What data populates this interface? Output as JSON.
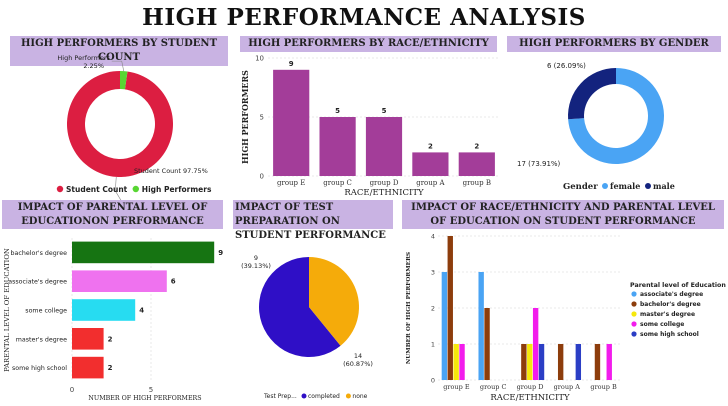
{
  "page": {
    "title": "HIGH PERFORMANCE ANALYSIS"
  },
  "panels": {
    "count": {
      "header": "HIGH PERFORMERS BY STUDENT COUNT"
    },
    "race": {
      "header": "HIGH PERFORMERS BY RACE/ETHNICITY"
    },
    "gender": {
      "header": "HIGH PERFORMERS BY GENDER"
    },
    "edu": {
      "header": "IMPACT OF PARENTAL LEVEL OF EDUCATIONON PERFORMANCE"
    },
    "prep": {
      "header": "IMPACT OF TEST PREPARATION ON STUDENT PERFORMANCE"
    },
    "combo": {
      "header": "IMPACT OF RACE/ETHNICITY AND PARENTAL LEVEL OF EDUCATION ON STUDENT PERFORMANCE"
    }
  },
  "chart_data": [
    {
      "id": "count",
      "type": "pie",
      "donut": true,
      "slices": [
        {
          "label": "Student Count",
          "value": 97.75,
          "label_text": "Student Count 97.75%",
          "color": "#dc1e41"
        },
        {
          "label": "High Performers",
          "value": 2.25,
          "label_text": "2.25%",
          "color": "#58d632"
        }
      ],
      "annotation": "High Performers",
      "legend": [
        "Student Count",
        "High Performers"
      ],
      "legend_placement": "bottom"
    },
    {
      "id": "race",
      "type": "bar",
      "categories": [
        "group E",
        "group C",
        "group D",
        "group A",
        "group B"
      ],
      "values": [
        9,
        5,
        5,
        2,
        2
      ],
      "color": "#a33d99",
      "xlabel": "RACE/ETHNICITY",
      "ylabel": "HIGH PERFORMERS",
      "ylim": [
        0,
        10
      ],
      "yticks": [
        0,
        5,
        10
      ],
      "grid": true
    },
    {
      "id": "gender",
      "type": "pie",
      "donut": true,
      "slices": [
        {
          "label": "female",
          "value": 17,
          "label_text": "17 (73.91%)",
          "color": "#4aa4f4"
        },
        {
          "label": "male",
          "value": 6,
          "label_text": "6 (26.09%)",
          "color": "#13237e"
        }
      ],
      "legend_title": "Gender",
      "legend": [
        "female",
        "male"
      ],
      "legend_placement": "bottom"
    },
    {
      "id": "edu",
      "type": "bar",
      "orientation": "horizontal",
      "categories": [
        "bachelor's degree",
        "associate's degree",
        "some college",
        "master's degree",
        "some high school"
      ],
      "values": [
        9,
        6,
        4,
        2,
        2
      ],
      "colors": [
        "#167412",
        "#ef72ef",
        "#27dcf1",
        "#f22e2e",
        "#f22e2e"
      ],
      "xlabel": "NUMBER OF HIGH PERFORMERS",
      "ylabel": "PARENTAL LEVEL OF EDUCATION",
      "xlim": [
        0,
        10
      ],
      "xticks": [
        0,
        5
      ]
    },
    {
      "id": "prep",
      "type": "pie",
      "slices": [
        {
          "label": "completed",
          "value": 14,
          "label_text": "14",
          "label_pct": "(60.87%)",
          "color": "#2f0fc6"
        },
        {
          "label": "none",
          "value": 9,
          "label_text": "9",
          "label_pct": "(39.13%)",
          "color": "#f5ab0a"
        }
      ],
      "legend_title": "Test Prep...",
      "legend": [
        "completed",
        "none"
      ],
      "legend_placement": "bottom"
    },
    {
      "id": "combo",
      "type": "bar",
      "categories": [
        "group E",
        "group C",
        "group D",
        "group A",
        "group B"
      ],
      "series": [
        {
          "name": "associate's degree",
          "color": "#4aa4f4",
          "values": [
            3,
            3,
            0,
            0,
            0
          ]
        },
        {
          "name": "bachelor's degree",
          "color": "#8d3d0c",
          "values": [
            4,
            2,
            1,
            1,
            1
          ]
        },
        {
          "name": "master's degree",
          "color": "#f6e80c",
          "values": [
            1,
            0,
            1,
            0,
            0
          ]
        },
        {
          "name": "some college",
          "color": "#f21cec",
          "values": [
            1,
            0,
            2,
            0,
            1
          ]
        },
        {
          "name": "some high school",
          "color": "#2b3ec5",
          "values": [
            0,
            0,
            1,
            1,
            0
          ]
        }
      ],
      "xlabel": "RACE/ETHNICITY",
      "ylabel": "NUMBER OF HIGH PERFORMERS",
      "ylim": [
        0,
        4
      ],
      "yticks": [
        0,
        1,
        2,
        3,
        4
      ],
      "legend_title": "Parental level of Education",
      "legend_placement": "right"
    }
  ]
}
